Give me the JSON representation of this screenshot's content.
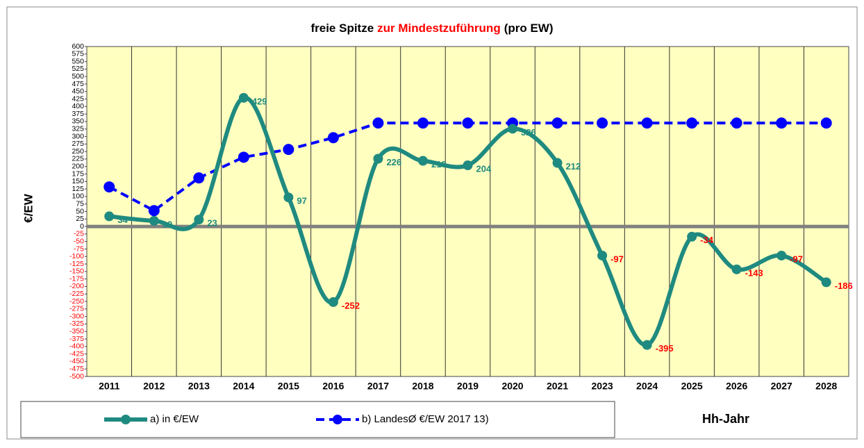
{
  "chart_data": {
    "type": "line",
    "title": [
      {
        "text": "freie Spitze",
        "color": "#000000"
      },
      {
        "text": "zur Mindestzuführung",
        "color": "#ff0000"
      },
      {
        "text": "(pro EW)",
        "color": "#000000"
      }
    ],
    "y_label": "€/EW",
    "x_label": "Hh-Jahr",
    "categories": [
      "2011",
      "2012",
      "2013",
      "2014",
      "2015",
      "2016",
      "2017",
      "2018",
      "2019",
      "2020",
      "2021",
      "2023",
      "2024",
      "2025",
      "2026",
      "2027",
      "2028"
    ],
    "series": [
      {
        "name": "a) in €/EW",
        "color": "#1f8a80",
        "smooth": true,
        "data_labels": true,
        "values": [
          34,
          19,
          23,
          429,
          97,
          -252,
          226,
          219,
          204,
          326,
          212,
          -97,
          -395,
          -34,
          -143,
          -97,
          -186
        ]
      },
      {
        "name": "b) LandesØ €/EW 2017 13)",
        "color": "#0000ff",
        "dashed": true,
        "values": [
          132,
          53,
          162,
          231,
          257,
          296,
          345,
          345,
          345,
          345,
          345,
          345,
          345,
          345,
          345,
          345,
          345
        ]
      }
    ],
    "negative_color": "#ff0000",
    "ylim": [
      -500,
      600
    ],
    "yticks": [
      -500,
      -475,
      -450,
      -425,
      -400,
      -375,
      -350,
      -325,
      -300,
      -275,
      -250,
      -225,
      -200,
      -175,
      -150,
      -125,
      -100,
      -75,
      -50,
      -25,
      0,
      25,
      50,
      75,
      100,
      125,
      150,
      175,
      200,
      225,
      250,
      275,
      300,
      325,
      350,
      375,
      400,
      425,
      450,
      475,
      500,
      525,
      550,
      575,
      600
    ],
    "grid": "vertical",
    "legend": "bottom-left"
  }
}
